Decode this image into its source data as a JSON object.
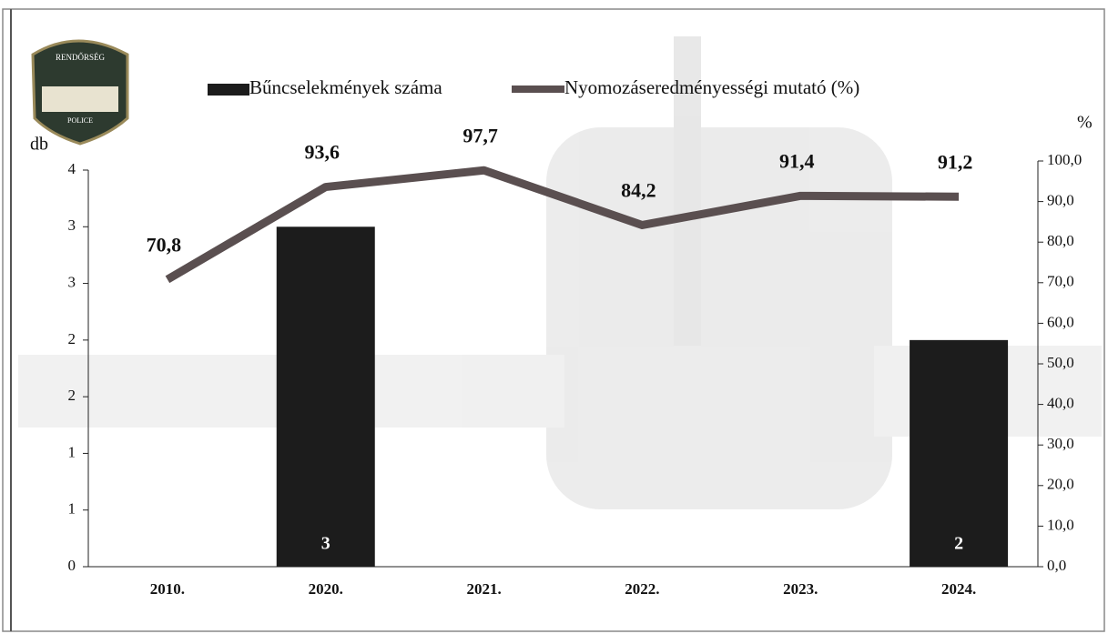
{
  "logo": {
    "top_text": "RENDŐRSÉG",
    "bottom_text": "POLICE"
  },
  "chart_data": {
    "type": "bar_line",
    "y_label": "db",
    "y2_label": "%",
    "categories": [
      "2010.",
      "2020.",
      "2021.",
      "2022.",
      "2023.",
      "2024."
    ],
    "series": [
      {
        "name": "Bűncselekmények száma",
        "type": "bar",
        "color": "#1c1c1c",
        "values": [
          null,
          3,
          null,
          null,
          null,
          2
        ]
      },
      {
        "name": "Nyomozáseredményességi mutató (%)",
        "type": "line",
        "axis": "y2",
        "color": "#5a4f50",
        "values": [
          70.8,
          93.6,
          97.7,
          84.2,
          91.4,
          91.2
        ],
        "value_labels": [
          "70,8",
          "93,6",
          "97,7",
          "84,2",
          "91,4",
          "91,2"
        ]
      }
    ],
    "ylim": [
      0,
      3.5
    ],
    "yticks": [
      0,
      {
        "value": 0.5,
        "label": "1"
      },
      1,
      {
        "value": 1.5,
        "label": "2"
      },
      2,
      {
        "value": 2.5,
        "label": "3"
      },
      3,
      {
        "value": 3.5,
        "label": "4"
      }
    ],
    "y2lim": [
      0,
      100
    ],
    "y2ticks": [
      {
        "value": 0,
        "label": "0,0"
      },
      {
        "value": 10,
        "label": "10,0"
      },
      {
        "value": 20,
        "label": "20,0"
      },
      {
        "value": 30,
        "label": "30,0"
      },
      {
        "value": 40,
        "label": "40,0"
      },
      {
        "value": 50,
        "label": "50,0"
      },
      {
        "value": 60,
        "label": "60,0"
      },
      {
        "value": 70,
        "label": "70,0"
      },
      {
        "value": 80,
        "label": "80,0"
      },
      {
        "value": 90,
        "label": "90,0"
      },
      {
        "value": 100,
        "label": "100,0"
      }
    ]
  }
}
